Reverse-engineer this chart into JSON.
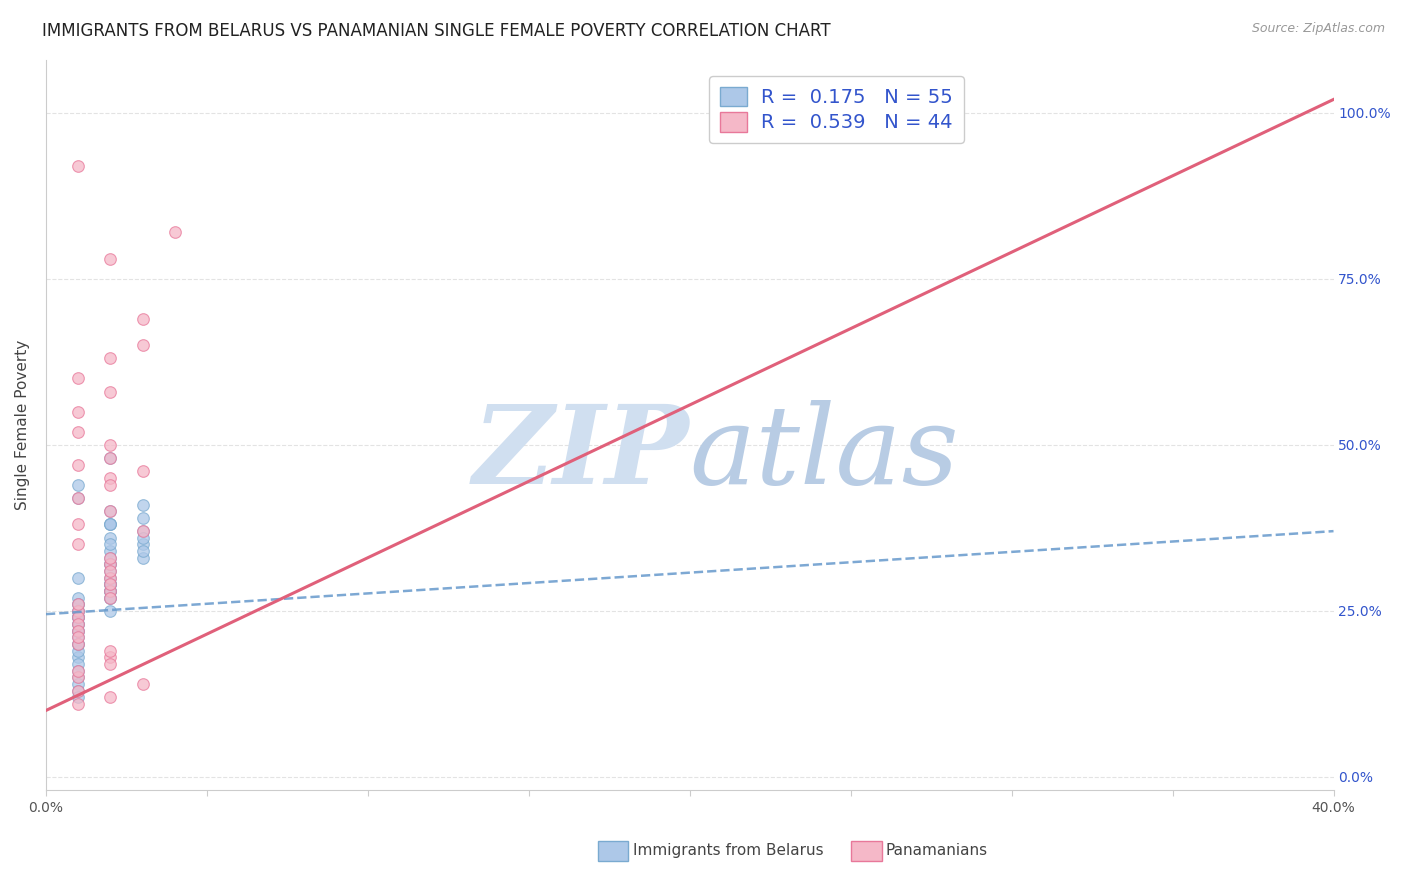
{
  "title": "IMMIGRANTS FROM BELARUS VS PANAMANIAN SINGLE FEMALE POVERTY CORRELATION CHART",
  "source": "Source: ZipAtlas.com",
  "ylabel": "Single Female Poverty",
  "legend_entries": [
    {
      "label": "R =  0.175   N = 55",
      "color": "#adc8e8",
      "edgecolor": "#7aaad0"
    },
    {
      "label": "R =  0.539   N = 44",
      "color": "#f5b8c8",
      "edgecolor": "#e8789a"
    }
  ],
  "legend_text_color": "#3355cc",
  "scatter_blue": {
    "x": [
      0.001,
      0.002,
      0.001,
      0.002,
      0.001,
      0.002,
      0.002,
      0.001,
      0.001,
      0.002,
      0.003,
      0.002,
      0.001,
      0.001,
      0.002,
      0.003,
      0.002,
      0.001,
      0.002,
      0.001,
      0.001,
      0.002,
      0.002,
      0.001,
      0.001,
      0.003,
      0.002,
      0.003,
      0.001,
      0.001,
      0.002,
      0.002,
      0.001,
      0.001,
      0.002,
      0.003,
      0.001,
      0.002,
      0.001,
      0.001,
      0.002,
      0.003,
      0.001,
      0.002,
      0.001,
      0.002,
      0.001,
      0.003,
      0.002,
      0.001,
      0.002,
      0.001,
      0.002,
      0.001,
      0.001
    ],
    "y": [
      0.44,
      0.48,
      0.42,
      0.38,
      0.25,
      0.28,
      0.27,
      0.3,
      0.23,
      0.32,
      0.35,
      0.36,
      0.26,
      0.22,
      0.29,
      0.33,
      0.38,
      0.24,
      0.31,
      0.2,
      0.27,
      0.4,
      0.34,
      0.21,
      0.26,
      0.37,
      0.28,
      0.41,
      0.25,
      0.18,
      0.3,
      0.35,
      0.24,
      0.19,
      0.29,
      0.36,
      0.23,
      0.33,
      0.17,
      0.22,
      0.28,
      0.39,
      0.15,
      0.32,
      0.16,
      0.27,
      0.14,
      0.34,
      0.25,
      0.13,
      0.38,
      0.2,
      0.29,
      0.12,
      0.24
    ]
  },
  "scatter_pink": {
    "x": [
      0.001,
      0.001,
      0.002,
      0.002,
      0.001,
      0.002,
      0.003,
      0.001,
      0.002,
      0.001,
      0.002,
      0.001,
      0.002,
      0.001,
      0.003,
      0.002,
      0.001,
      0.002,
      0.001,
      0.002,
      0.004,
      0.001,
      0.002,
      0.002,
      0.001,
      0.001,
      0.002,
      0.003,
      0.001,
      0.002,
      0.002,
      0.001,
      0.003,
      0.001,
      0.002,
      0.002,
      0.003,
      0.001,
      0.001,
      0.002,
      0.002,
      0.001,
      0.002,
      0.001
    ],
    "y": [
      0.92,
      0.6,
      0.78,
      0.5,
      0.47,
      0.63,
      0.69,
      0.55,
      0.45,
      0.52,
      0.48,
      0.42,
      0.58,
      0.35,
      0.65,
      0.4,
      0.38,
      0.44,
      0.25,
      0.28,
      0.82,
      0.26,
      0.27,
      0.3,
      0.24,
      0.23,
      0.32,
      0.37,
      0.22,
      0.33,
      0.31,
      0.15,
      0.14,
      0.2,
      0.18,
      0.19,
      0.46,
      0.16,
      0.13,
      0.29,
      0.17,
      0.21,
      0.12,
      0.11
    ]
  },
  "trendline_blue": {
    "x": [
      0.0,
      0.04
    ],
    "y": [
      0.245,
      0.37
    ],
    "color": "#6699cc",
    "linestyle": "--"
  },
  "trendline_pink": {
    "x": [
      0.0,
      0.04
    ],
    "y": [
      0.1,
      1.02
    ],
    "color": "#e0607a",
    "linestyle": "-"
  },
  "xlim": [
    0.0,
    0.04
  ],
  "ylim": [
    -0.02,
    1.08
  ],
  "xtick_positions": [
    0.0,
    0.005,
    0.01,
    0.015,
    0.02,
    0.025,
    0.03,
    0.035,
    0.04
  ],
  "xtick_labels_left": "0.0%",
  "xtick_labels_right": "40.0%",
  "ytick_positions": [
    0.0,
    0.25,
    0.5,
    0.75,
    1.0
  ],
  "ytick_labels_right": [
    "0.0%",
    "25.0%",
    "50.0%",
    "75.0%",
    "100.0%"
  ],
  "background_color": "#ffffff",
  "grid_color": "#e0e0e0",
  "title_fontsize": 12,
  "axis_label_fontsize": 11,
  "tick_fontsize": 10,
  "scatter_size": 70,
  "scatter_alpha": 0.75,
  "watermark_zip_color": "#d0dff0",
  "watermark_atlas_color": "#b8cce4",
  "source_color": "#999999"
}
